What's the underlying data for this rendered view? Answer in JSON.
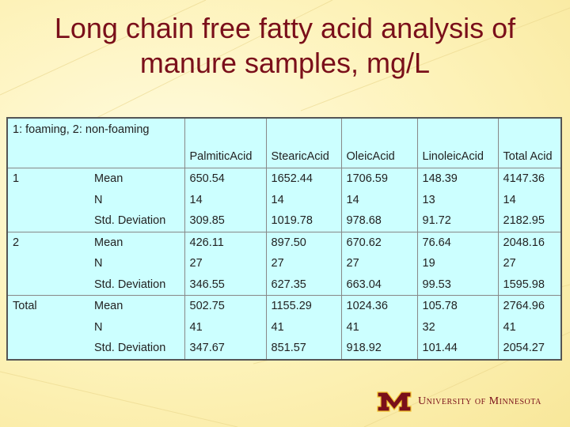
{
  "slide": {
    "title_line1": "Long chain free fatty acid analysis of",
    "title_line2": "manure samples, mg/L"
  },
  "table": {
    "grouping_label": "1: foaming, 2: non-foaming",
    "columns": [
      "PalmiticAcid",
      "StearicAcid",
      "OleicAcid",
      "LinoleicAcid",
      "Total Acid"
    ],
    "groups": [
      {
        "label": "1",
        "rows": [
          {
            "stat": "Mean",
            "values": [
              "650.54",
              "1652.44",
              "1706.59",
              "148.39",
              "4147.36"
            ]
          },
          {
            "stat": "N",
            "values": [
              "14",
              "14",
              "14",
              "13",
              "14"
            ]
          },
          {
            "stat": "Std. Deviation",
            "values": [
              "309.85",
              "1019.78",
              "978.68",
              "91.72",
              "2182.95"
            ]
          }
        ]
      },
      {
        "label": "2",
        "rows": [
          {
            "stat": "Mean",
            "values": [
              "426.11",
              "897.50",
              "670.62",
              "76.64",
              "2048.16"
            ]
          },
          {
            "stat": "N",
            "values": [
              "27",
              "27",
              "27",
              "19",
              "27"
            ]
          },
          {
            "stat": "Std. Deviation",
            "values": [
              "346.55",
              "627.35",
              "663.04",
              "99.53",
              "1595.98"
            ]
          }
        ]
      },
      {
        "label": "Total",
        "rows": [
          {
            "stat": "Mean",
            "values": [
              "502.75",
              "1155.29",
              "1024.36",
              "105.78",
              "2764.96"
            ]
          },
          {
            "stat": "N",
            "values": [
              "41",
              "41",
              "41",
              "32",
              "41"
            ]
          },
          {
            "stat": "Std. Deviation",
            "values": [
              "347.67",
              "851.57",
              "918.92",
              "101.44",
              "2054.27"
            ]
          }
        ]
      }
    ]
  },
  "footer": {
    "logo_text": "University of Minnesota"
  },
  "colors": {
    "title": "#7a0f1a",
    "table_bg": "#ccffff",
    "logo_maroon": "#7a0f1a",
    "logo_gold": "#f2c230"
  }
}
